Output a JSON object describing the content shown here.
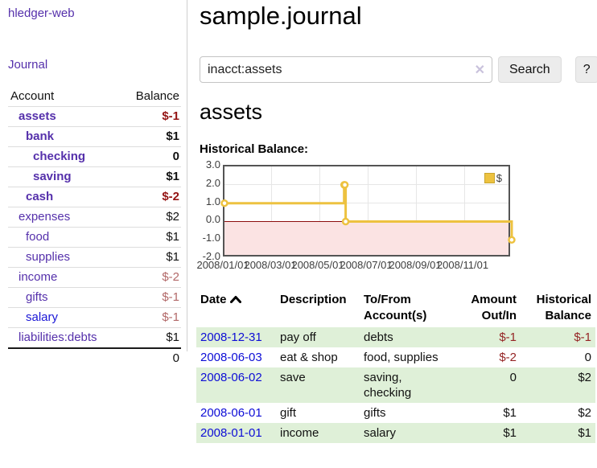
{
  "app": {
    "brand": "hledger-web",
    "nav": {
      "journal": "Journal"
    }
  },
  "sidebar": {
    "columns": {
      "account": "Account",
      "balance": "Balance"
    },
    "accounts": [
      {
        "name": "assets",
        "balance": "$-1",
        "depth": 1,
        "bold": true
      },
      {
        "name": "bank",
        "balance": "$1",
        "depth": 2,
        "bold": true
      },
      {
        "name": "checking",
        "balance": "0",
        "depth": 3,
        "bold": true
      },
      {
        "name": "saving",
        "balance": "$1",
        "depth": 3,
        "bold": true
      },
      {
        "name": "cash",
        "balance": "$-2",
        "depth": 2,
        "bold": true
      },
      {
        "name": "expenses",
        "balance": "$2",
        "depth": 1,
        "bold": false
      },
      {
        "name": "food",
        "balance": "$1",
        "depth": 2,
        "bold": false
      },
      {
        "name": "supplies",
        "balance": "$1",
        "depth": 2,
        "bold": false
      },
      {
        "name": "income",
        "balance": "$-2",
        "depth": 1,
        "bold": false
      },
      {
        "name": "gifts",
        "balance": "$-1",
        "depth": 2,
        "bold": false
      },
      {
        "name": "salary",
        "balance": "$-1",
        "depth": 2,
        "bold": false
      },
      {
        "name": "liabilities:debts",
        "balance": "$1",
        "depth": 1,
        "bold": false
      }
    ],
    "total": "0"
  },
  "main": {
    "title": "sample.journal",
    "search": {
      "value": "inacct:assets",
      "clear_icon": "✕",
      "search_button": "Search",
      "help_button": "?"
    },
    "account_heading": "assets",
    "chart_heading": "Historical Balance:"
  },
  "chart_data": {
    "type": "line",
    "title": "Historical Balance:",
    "step": true,
    "legend": [
      {
        "label": "$",
        "color": "#EDC240"
      }
    ],
    "legend_position": "top-right",
    "line_color": "#EDC240",
    "marker": "open-circle",
    "zero_line_color": "#8c0d0d",
    "negative_region_color": "#fbe3e3",
    "grid": true,
    "xlim": [
      "2008-01-01",
      "2008-12-31"
    ],
    "ylim": [
      -2,
      3
    ],
    "yticks": [
      "3.0",
      "2.0",
      "1.0",
      "0.0",
      "-1.0",
      "-2.0"
    ],
    "xticks": [
      "2008/01/01",
      "2008/03/01",
      "2008/05/01",
      "2008/07/01",
      "2008/09/01",
      "2008/11/01"
    ],
    "points": [
      {
        "x": "2008-01-01",
        "y": 1
      },
      {
        "x": "2008-06-01",
        "y": 2
      },
      {
        "x": "2008-06-02",
        "y": 2
      },
      {
        "x": "2008-06-03",
        "y": 0
      },
      {
        "x": "2008-12-31",
        "y": -1
      }
    ]
  },
  "register": {
    "headers": {
      "date": "Date",
      "description": "Description",
      "accounts": "To/From Account(s)",
      "amount": "Amount Out/In",
      "balance": "Historical Balance"
    },
    "rows": [
      {
        "date": "2008-12-31",
        "description": "pay off",
        "accounts": "debts",
        "amount": "$-1",
        "amount_neg": true,
        "balance": "$-1",
        "balance_neg": true
      },
      {
        "date": "2008-06-03",
        "description": "eat & shop",
        "accounts": "food, supplies",
        "amount": "$-2",
        "amount_neg": true,
        "balance": "0",
        "balance_neg": false
      },
      {
        "date": "2008-06-02",
        "description": "save",
        "accounts": "saving, checking",
        "amount": "0",
        "amount_neg": false,
        "balance": "$2",
        "balance_neg": false
      },
      {
        "date": "2008-06-01",
        "description": "gift",
        "accounts": "gifts",
        "amount": "$1",
        "amount_neg": false,
        "balance": "$2",
        "balance_neg": false
      },
      {
        "date": "2008-01-01",
        "description": "income",
        "accounts": "salary",
        "amount": "$1",
        "amount_neg": false,
        "balance": "$1",
        "balance_neg": false
      }
    ]
  }
}
